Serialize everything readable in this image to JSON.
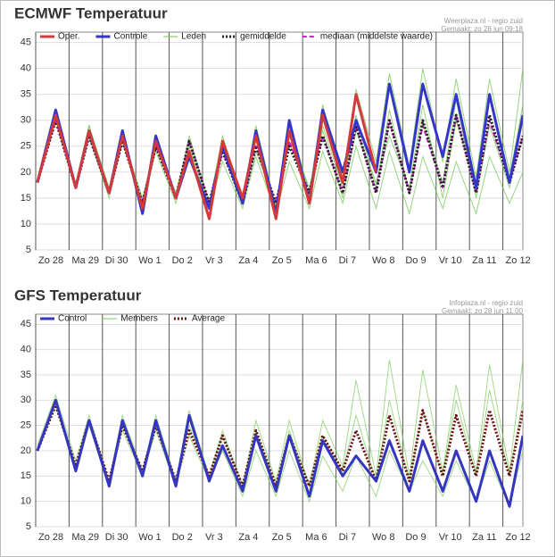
{
  "chart_data": [
    {
      "type": "line",
      "title": "ECMWF Temperatuur",
      "source": "Weerplaza.nl - regio zuid",
      "created": "Gemaakt: zo 28 jun 09:18",
      "x": [
        0.05,
        0.6,
        1.2,
        1.6,
        2.2,
        2.6,
        3.2,
        3.6,
        4.2,
        4.6,
        5.2,
        5.6,
        6.2,
        6.6,
        7.2,
        7.6,
        8.2,
        8.6,
        9.2,
        9.6,
        10.2,
        10.6,
        11.2,
        11.6,
        12.2,
        12.6,
        13.2,
        13.6,
        14.2,
        14.6
      ],
      "xlim": [
        0,
        14.6
      ],
      "xticks": [
        {
          "value": 0,
          "label": "Zo 28"
        },
        {
          "value": 1,
          "label": "Ma 29"
        },
        {
          "value": 2,
          "label": "Di 30"
        },
        {
          "value": 3,
          "label": "Wo 1"
        },
        {
          "value": 4,
          "label": "Do 2"
        },
        {
          "value": 5,
          "label": "Vr 3"
        },
        {
          "value": 6,
          "label": "Za 4"
        },
        {
          "value": 7,
          "label": "Zo 5"
        },
        {
          "value": 8,
          "label": "Ma 6"
        },
        {
          "value": 9,
          "label": "Di 7"
        },
        {
          "value": 10,
          "label": "Wo 8"
        },
        {
          "value": 11,
          "label": "Do 9"
        },
        {
          "value": 12,
          "label": "Vr 10"
        },
        {
          "value": 13,
          "label": "Za 11"
        },
        {
          "value": 14,
          "label": "Zo 12"
        }
      ],
      "ylim": [
        5,
        47
      ],
      "yticks": [
        5,
        10,
        15,
        20,
        25,
        30,
        35,
        40,
        45
      ],
      "grid": true,
      "series": [
        {
          "name": "Oper.",
          "color": "#d2393c",
          "style": "solid",
          "values": [
            18,
            31,
            17,
            28,
            16,
            27,
            13,
            26,
            15,
            24,
            11,
            26,
            15,
            27,
            11,
            28,
            14,
            31,
            18,
            35,
            20,
            null,
            null,
            null,
            null,
            null,
            null,
            null,
            null,
            null
          ]
        },
        {
          "name": "Controle",
          "color": "#3535c8",
          "style": "solid",
          "values": [
            18,
            32,
            17,
            28,
            16,
            28,
            12,
            27,
            15,
            23,
            13,
            25,
            14,
            28,
            12,
            30,
            14,
            32,
            20,
            30,
            20,
            37,
            20,
            37,
            23,
            35,
            17,
            35,
            18,
            31
          ]
        },
        {
          "name": "Leden",
          "color": "#6cc24a",
          "style": "members",
          "runs": [
            [
              18,
              32,
              17,
              29,
              16,
              28,
              13,
              27,
              15,
              27,
              14,
              27,
              15,
              29,
              13,
              30,
              16,
              33,
              19,
              36,
              22,
              39,
              21,
              40,
              22,
              38,
              19,
              38,
              20,
              40
            ],
            [
              18,
              30,
              17,
              27,
              15,
              26,
              14,
              24,
              14,
              24,
              13,
              22,
              13,
              23,
              12,
              22,
              13,
              24,
              14,
              25,
              13,
              24,
              12,
              23,
              13,
              22,
              12,
              23,
              14,
              20
            ],
            [
              18,
              31,
              17,
              28,
              16,
              27,
              14,
              26,
              15,
              25,
              13,
              25,
              14,
              27,
              13,
              26,
              15,
              29,
              17,
              31,
              17,
              32,
              16,
              30,
              18,
              34,
              15,
              29,
              17,
              30
            ],
            [
              18,
              31,
              18,
              29,
              17,
              27,
              15,
              25,
              16,
              26,
              14,
              25,
              14,
              24,
              14,
              27,
              17,
              28,
              15,
              28,
              18,
              27,
              17,
              33,
              15,
              30,
              18,
              35,
              19,
              33
            ]
          ]
        },
        {
          "name": "gemiddelde",
          "color": "#222222",
          "style": "dotted",
          "values": [
            18,
            30,
            17,
            27,
            16,
            26,
            14,
            25,
            15,
            26,
            14,
            24,
            14,
            25,
            14,
            25,
            16,
            27,
            16,
            29,
            16,
            30,
            16,
            30,
            17,
            31,
            16,
            31,
            18,
            27
          ]
        },
        {
          "name": "mediaan (middelste waarde)",
          "color": "#d020d0",
          "style": "dashed",
          "values": [
            18,
            30,
            17,
            27,
            16,
            26,
            14,
            25,
            15,
            26,
            14,
            24,
            14,
            25,
            14,
            26,
            16,
            27,
            16,
            29,
            16,
            30,
            16,
            29,
            17,
            31,
            16,
            30,
            18,
            27
          ]
        }
      ]
    },
    {
      "type": "line",
      "title": "GFS Temperatuur",
      "source": "Infoplaza.nl - regio zuid",
      "created": "Gemaakt: zo 28 jun 11:00",
      "x": [
        0.05,
        0.6,
        1.2,
        1.6,
        2.2,
        2.6,
        3.2,
        3.6,
        4.2,
        4.6,
        5.2,
        5.6,
        6.2,
        6.6,
        7.2,
        7.6,
        8.2,
        8.6,
        9.2,
        9.6,
        10.2,
        10.6,
        11.2,
        11.6,
        12.2,
        12.6,
        13.2,
        13.6,
        14.2,
        14.6
      ],
      "xlim": [
        0,
        14.6
      ],
      "xticks": [
        {
          "value": 0,
          "label": "Zo 28"
        },
        {
          "value": 1,
          "label": "Ma 29"
        },
        {
          "value": 2,
          "label": "Di 30"
        },
        {
          "value": 3,
          "label": "Wo 1"
        },
        {
          "value": 4,
          "label": "Do 2"
        },
        {
          "value": 5,
          "label": "Vr 3"
        },
        {
          "value": 6,
          "label": "Za 4"
        },
        {
          "value": 7,
          "label": "Zo 5"
        },
        {
          "value": 8,
          "label": "Ma 6"
        },
        {
          "value": 9,
          "label": "Di 7"
        },
        {
          "value": 10,
          "label": "Wo 8"
        },
        {
          "value": 11,
          "label": "Do 9"
        },
        {
          "value": 12,
          "label": "Vr 10"
        },
        {
          "value": 13,
          "label": "Za 11"
        },
        {
          "value": 14,
          "label": "Zo 12"
        }
      ],
      "ylim": [
        5,
        47
      ],
      "yticks": [
        5,
        10,
        15,
        20,
        25,
        30,
        35,
        40,
        45
      ],
      "grid": true,
      "series": [
        {
          "name": "Control",
          "color": "#3535c0",
          "style": "solid",
          "values": [
            20,
            30,
            16,
            26,
            13,
            26,
            15,
            26,
            13,
            27,
            14,
            21,
            12,
            23,
            12,
            23,
            11,
            22,
            15,
            19,
            14,
            22,
            12,
            22,
            12,
            20,
            10,
            20,
            9,
            23
          ]
        },
        {
          "name": "Members",
          "color": "#7ccc5c",
          "style": "members",
          "runs": [
            [
              21,
              31,
              18,
              27,
              14,
              27,
              16,
              27,
              14,
              28,
              15,
              24,
              13,
              26,
              14,
              26,
              13,
              26,
              17,
              34,
              15,
              38,
              15,
              36,
              16,
              33,
              16,
              37,
              16,
              38
            ],
            [
              20,
              29,
              16,
              25,
              13,
              24,
              15,
              24,
              13,
              23,
              14,
              20,
              11,
              20,
              11,
              20,
              10,
              19,
              12,
              19,
              11,
              20,
              12,
              18,
              11,
              18,
              10,
              18,
              9,
              20
            ],
            [
              20,
              30,
              17,
              26,
              14,
              25,
              16,
              25,
              14,
              25,
              15,
              23,
              13,
              24,
              13,
              24,
              13,
              23,
              16,
              27,
              14,
              30,
              14,
              28,
              15,
              30,
              15,
              32,
              15,
              30
            ]
          ]
        },
        {
          "name": "Average",
          "color": "#6b1010",
          "style": "dotted",
          "values": [
            20,
            29,
            17,
            26,
            14,
            25,
            16,
            25,
            14,
            24,
            15,
            23,
            13,
            24,
            13,
            23,
            13,
            23,
            16,
            24,
            14,
            27,
            14,
            28,
            15,
            27,
            15,
            28,
            15,
            28
          ]
        }
      ]
    }
  ]
}
